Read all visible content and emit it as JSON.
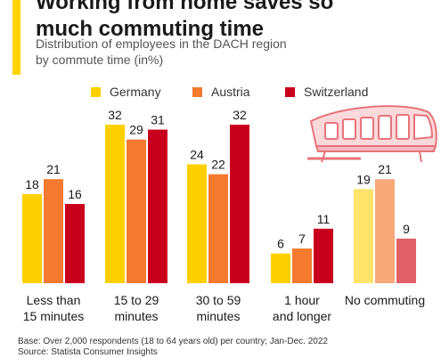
{
  "header": {
    "title_line1": "Working from home saves so",
    "title_line2": "much commuting time",
    "subtitle_line1": "Distribution of employees in the DACH region",
    "subtitle_line2": "by commute time (in%)"
  },
  "footer": {
    "base": "Base: Over 2,000 respondents (18 to 64 years old) per country; Jan-Dec. 2022",
    "source": "Source: Statista Consumer Insights"
  },
  "illustration": {
    "icon": "train-icon",
    "color": "#e8737a"
  },
  "chart_data": {
    "type": "bar",
    "title": "Working from home saves so much commuting time",
    "subtitle": "Distribution of employees in the DACH region by commute time (in%)",
    "xlabel": "",
    "ylabel": "",
    "ylim": [
      0,
      32
    ],
    "grid": false,
    "legend": "top",
    "categories": [
      [
        "Less than",
        "15 minutes"
      ],
      [
        "15 to 29",
        "minutes"
      ],
      [
        "30 to 59",
        "minutes"
      ],
      [
        "1 hour",
        "and longer"
      ],
      [
        "No commuting"
      ]
    ],
    "series": [
      {
        "name": "Germany",
        "color": "#ffd000",
        "values": [
          18,
          32,
          24,
          6,
          19
        ]
      },
      {
        "name": "Austria",
        "color": "#f47a30",
        "values": [
          21,
          29,
          22,
          7,
          21
        ]
      },
      {
        "name": "Switzerland",
        "color": "#c8001e",
        "values": [
          16,
          31,
          32,
          11,
          9
        ]
      }
    ],
    "highlight_last_category_faded": true,
    "faded_colors": [
      "#ffe36a",
      "#f8a97a",
      "#e26168"
    ]
  }
}
